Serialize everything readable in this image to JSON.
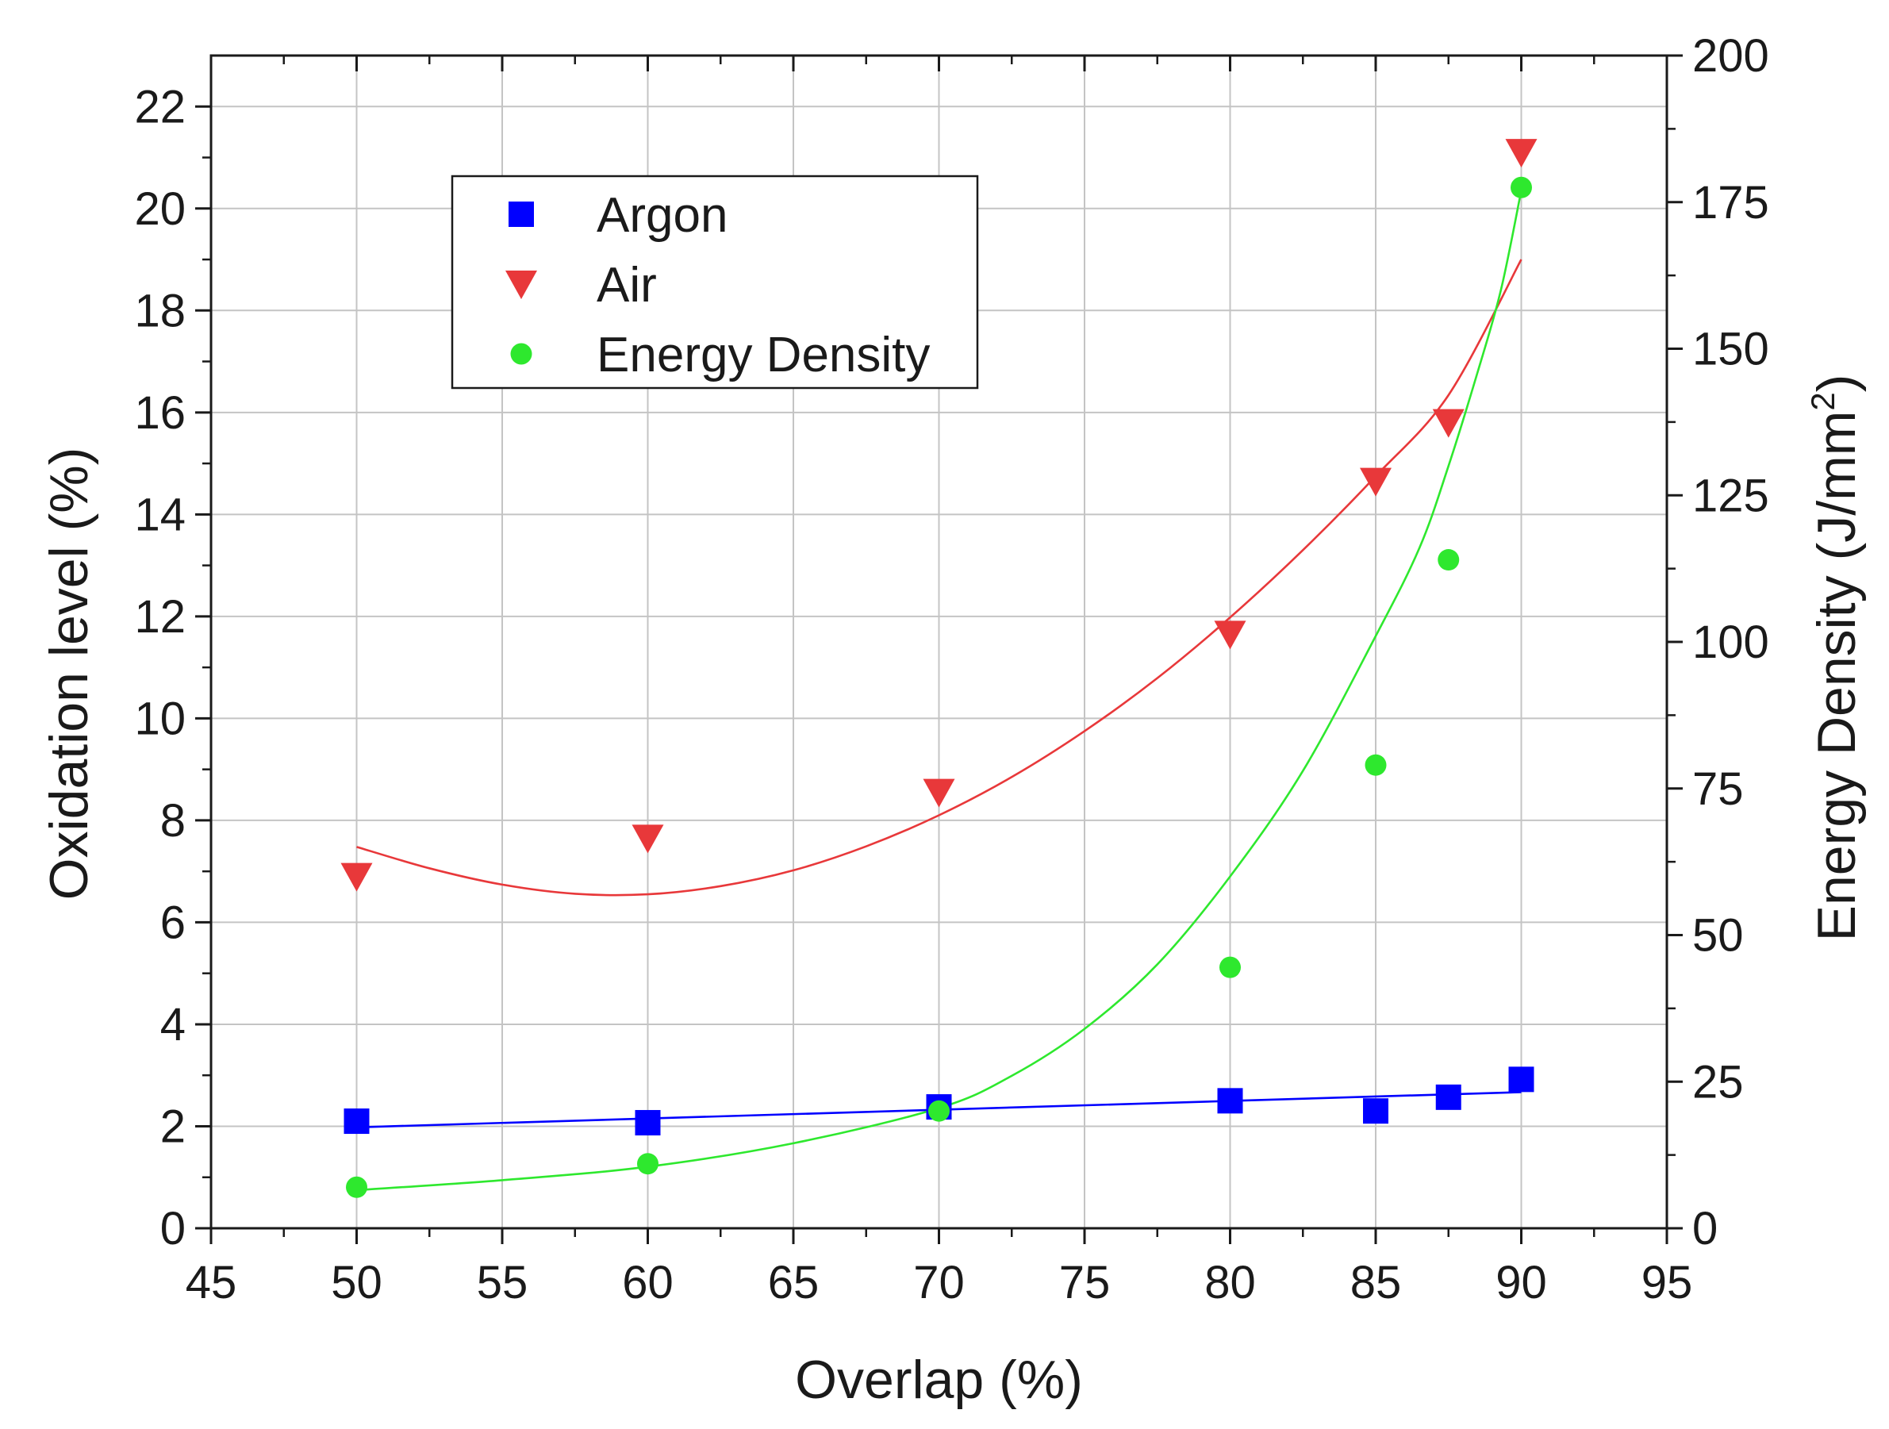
{
  "chart_data": {
    "type": "scatter",
    "xlabel": "Overlap (%)",
    "ylabel_left": "Oxidation level (%)",
    "ylabel_right": "Energy Density (J/mm",
    "ylabel_right_sup": "2",
    "ylabel_right_close": ")",
    "xlim": [
      45,
      95
    ],
    "ylim_left": [
      0,
      23
    ],
    "ylim_right": [
      0,
      200
    ],
    "x_ticks": [
      "45",
      "50",
      "55",
      "60",
      "65",
      "70",
      "75",
      "80",
      "85",
      "90",
      "95"
    ],
    "y_left_ticks": [
      "0",
      "2",
      "4",
      "6",
      "8",
      "10",
      "12",
      "14",
      "16",
      "18",
      "20",
      "22"
    ],
    "y_right_ticks": [
      "0",
      "25",
      "50",
      "75",
      "100",
      "125",
      "150",
      "175",
      "200"
    ],
    "grid": true,
    "legend_position": "upper-left",
    "series": [
      {
        "name": "Argon",
        "axis": "left",
        "marker": "square",
        "color": "#0000ff",
        "points": [
          [
            50,
            2.1
          ],
          [
            60,
            2.07
          ],
          [
            70,
            2.38
          ],
          [
            80,
            2.5
          ],
          [
            85,
            2.3
          ],
          [
            87.5,
            2.57
          ],
          [
            90,
            2.92
          ]
        ],
        "fit": [
          [
            50,
            1.98
          ],
          [
            90,
            2.67
          ]
        ]
      },
      {
        "name": "Air",
        "axis": "left",
        "marker": "triangle-down",
        "color": "#e8383a",
        "points": [
          [
            50,
            6.9
          ],
          [
            60,
            7.65
          ],
          [
            70,
            8.55
          ],
          [
            80,
            11.65
          ],
          [
            85,
            14.65
          ],
          [
            87.5,
            15.8
          ],
          [
            90,
            21.1
          ]
        ],
        "fit": [
          [
            50,
            7.48
          ],
          [
            52.5,
            7.06
          ],
          [
            55,
            6.74
          ],
          [
            57.5,
            6.56
          ],
          [
            60,
            6.55
          ],
          [
            62.5,
            6.71
          ],
          [
            65,
            7.02
          ],
          [
            67.5,
            7.49
          ],
          [
            70,
            8.1
          ],
          [
            72.5,
            8.85
          ],
          [
            75,
            9.75
          ],
          [
            77.5,
            10.79
          ],
          [
            80,
            11.98
          ],
          [
            82.5,
            13.3
          ],
          [
            85,
            14.75
          ],
          [
            87.5,
            16.34
          ],
          [
            90,
            19.0
          ]
        ]
      },
      {
        "name": "Energy Density",
        "axis": "right",
        "marker": "circle",
        "color": "#2ee82e",
        "points": [
          [
            50,
            7
          ],
          [
            60,
            11
          ],
          [
            70,
            20
          ],
          [
            80,
            44.5
          ],
          [
            85,
            79
          ],
          [
            87.5,
            114
          ],
          [
            90,
            177.5
          ]
        ],
        "fit": [
          [
            50,
            6.5
          ],
          [
            55,
            8.2
          ],
          [
            60,
            10.5
          ],
          [
            65,
            14.5
          ],
          [
            70,
            20.5
          ],
          [
            72.5,
            26
          ],
          [
            75,
            34
          ],
          [
            77.5,
            45
          ],
          [
            80,
            60
          ],
          [
            82.5,
            78
          ],
          [
            85,
            101
          ],
          [
            86.5,
            116
          ],
          [
            87.5,
            130
          ],
          [
            88.5,
            146
          ],
          [
            89.3,
            160
          ],
          [
            90,
            177
          ]
        ]
      }
    ]
  }
}
